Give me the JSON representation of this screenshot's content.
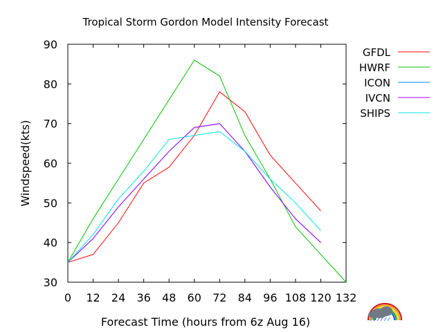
{
  "chart_data": {
    "type": "line",
    "title": "Tropical Storm Gordon Model Intensity Forecast",
    "xlabel": "Forecast Time (hours from 6z Aug 16)",
    "ylabel": "Windspeed(kts)",
    "xlim": [
      0,
      132
    ],
    "ylim": [
      30,
      90
    ],
    "xticks": [
      0,
      12,
      24,
      36,
      48,
      60,
      72,
      84,
      96,
      108,
      120,
      132
    ],
    "yticks": [
      30,
      40,
      50,
      60,
      70,
      80,
      90
    ],
    "grid": false,
    "legend": "top-right",
    "series": [
      {
        "name": "GFDL",
        "color": "#ff0000",
        "x": [
          0,
          12,
          24,
          36,
          48,
          60,
          72,
          84,
          96,
          108,
          120
        ],
        "y": [
          35,
          37,
          45,
          55,
          59,
          67,
          78,
          73,
          62,
          55,
          48
        ]
      },
      {
        "name": "HWRF",
        "color": "#00c000",
        "x": [
          0,
          12,
          24,
          36,
          48,
          60,
          72,
          84,
          96,
          108,
          120,
          132
        ],
        "y": [
          35,
          46,
          56,
          66,
          76,
          86,
          82,
          67,
          56,
          44,
          37,
          30
        ]
      },
      {
        "name": "ICON",
        "color": "#0080ff",
        "x": [
          0,
          12,
          24,
          36,
          48,
          60,
          72,
          84,
          96,
          108,
          120
        ],
        "y": [
          35,
          41,
          49,
          56,
          63,
          69,
          70,
          63,
          54,
          46,
          40
        ]
      },
      {
        "name": "IVCN",
        "color": "#a000ff",
        "x": [
          0,
          12,
          24,
          36,
          48,
          60,
          72,
          84,
          96,
          108,
          120
        ],
        "y": [
          35,
          41,
          49,
          56,
          63,
          69,
          70,
          63,
          54,
          46,
          40
        ]
      },
      {
        "name": "SHIPS",
        "color": "#00e0e0",
        "x": [
          0,
          12,
          24,
          36,
          48,
          60,
          72,
          84,
          96,
          108,
          120
        ],
        "y": [
          35,
          42,
          51,
          58,
          66,
          67,
          68,
          63,
          56,
          50,
          43
        ]
      }
    ]
  },
  "logo": {
    "name": "storm-logo",
    "cloud_color": "#707a85",
    "rainbow_colors": [
      "#d02020",
      "#f0a020",
      "#e8e030",
      "#30a030",
      "#2060d0"
    ]
  }
}
